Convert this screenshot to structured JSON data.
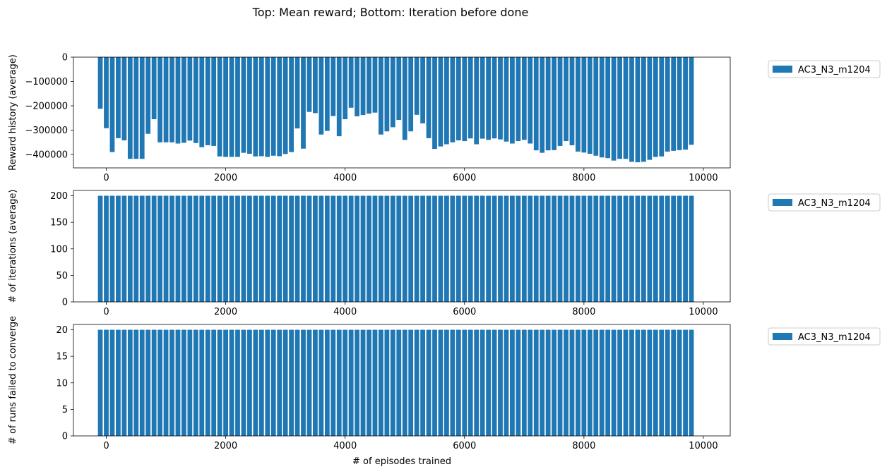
{
  "suptitle": "Top: Mean reward; Bottom: Iteration before done",
  "colors": {
    "bar": "#1f77b4",
    "axis": "#000000",
    "legend_frame": "#cccccc",
    "background": "#ffffff"
  },
  "chart_data": [
    {
      "type": "bar",
      "ylabel": "Reward history (average)",
      "xlabel": "",
      "ylim": [
        -455000,
        0
      ],
      "xlim": [
        -550,
        10450
      ],
      "bar_width": 80,
      "xticks": [
        0,
        2000,
        4000,
        6000,
        8000,
        10000
      ],
      "yticks": [
        0,
        -100000,
        -200000,
        -300000,
        -400000
      ],
      "ytick_labels": [
        "0",
        "−100000",
        "−200000",
        "−300000",
        "−400000"
      ],
      "legend": {
        "label": "AC3_N3_m1204",
        "placement": "outside-upper-right"
      },
      "grid": false,
      "series": [
        {
          "name": "AC3_N3_m1204",
          "x_start": -100,
          "x_step": 100,
          "values": [
            -212000,
            -292000,
            -390000,
            -333000,
            -342000,
            -418000,
            -418000,
            -418000,
            -315000,
            -255000,
            -350000,
            -350000,
            -350000,
            -355000,
            -352000,
            -343000,
            -353000,
            -370000,
            -362000,
            -365000,
            -408000,
            -410000,
            -410000,
            -410000,
            -393000,
            -397000,
            -408000,
            -407000,
            -410000,
            -405000,
            -407000,
            -398000,
            -390000,
            -293000,
            -376000,
            -225000,
            -230000,
            -318000,
            -303000,
            -242000,
            -325000,
            -255000,
            -208000,
            -243000,
            -238000,
            -232000,
            -228000,
            -318000,
            -305000,
            -288000,
            -258000,
            -340000,
            -305000,
            -237000,
            -272000,
            -333000,
            -377000,
            -367000,
            -358000,
            -350000,
            -342000,
            -345000,
            -334000,
            -358000,
            -335000,
            -340000,
            -334000,
            -338000,
            -347000,
            -355000,
            -345000,
            -340000,
            -355000,
            -383000,
            -393000,
            -383000,
            -382000,
            -365000,
            -345000,
            -362000,
            -388000,
            -392000,
            -397000,
            -405000,
            -412000,
            -415000,
            -425000,
            -418000,
            -418000,
            -430000,
            -432000,
            -430000,
            -422000,
            -410000,
            -408000,
            -388000,
            -385000,
            -382000,
            -380000,
            -360000
          ]
        }
      ]
    },
    {
      "type": "bar",
      "ylabel": "# of iterations (average)",
      "xlabel": "",
      "ylim": [
        0,
        210
      ],
      "xlim": [
        -550,
        10450
      ],
      "bar_width": 80,
      "xticks": [
        0,
        2000,
        4000,
        6000,
        8000,
        10000
      ],
      "yticks": [
        0,
        50,
        100,
        150,
        200
      ],
      "ytick_labels": [
        "0",
        "50",
        "100",
        "150",
        "200"
      ],
      "legend": {
        "label": "AC3_N3_m1204",
        "placement": "outside-upper-right"
      },
      "grid": false,
      "series": [
        {
          "name": "AC3_N3_m1204",
          "x_start": -100,
          "x_step": 100,
          "constant_value": 200,
          "count": 100
        }
      ]
    },
    {
      "type": "bar",
      "ylabel": "# of runs failed to converge",
      "xlabel": "# of episodes trained",
      "ylim": [
        0,
        21
      ],
      "xlim": [
        -550,
        10450
      ],
      "bar_width": 80,
      "xticks": [
        0,
        2000,
        4000,
        6000,
        8000,
        10000
      ],
      "yticks": [
        0,
        5,
        10,
        15,
        20
      ],
      "ytick_labels": [
        "0",
        "5",
        "10",
        "15",
        "20"
      ],
      "legend": {
        "label": "AC3_N3_m1204",
        "placement": "outside-upper-right"
      },
      "grid": false,
      "series": [
        {
          "name": "AC3_N3_m1204",
          "x_start": -100,
          "x_step": 100,
          "constant_value": 20,
          "count": 100
        }
      ]
    }
  ]
}
